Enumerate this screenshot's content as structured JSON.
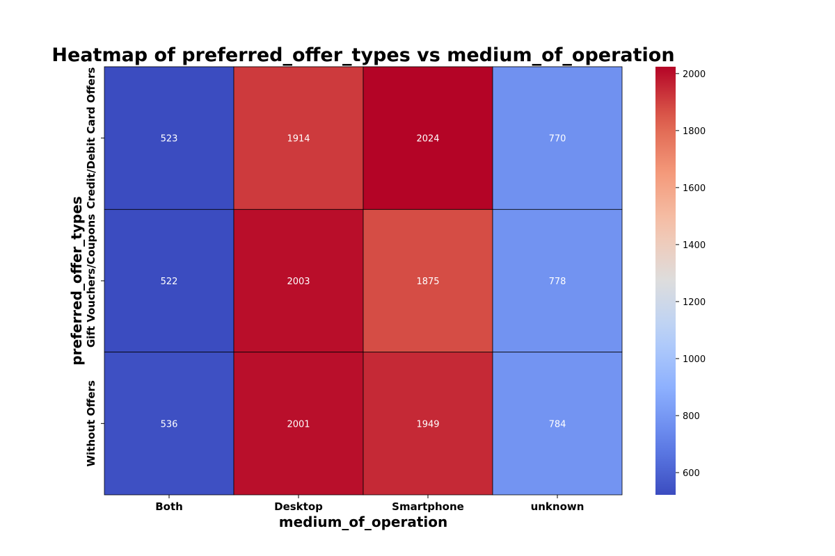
{
  "chart_data": {
    "type": "heatmap",
    "title": "Heatmap of preferred_offer_types vs medium_of_operation",
    "xlabel": "medium_of_operation",
    "ylabel": "preferred_offer_types",
    "x_categories": [
      "Both",
      "Desktop",
      "Smartphone",
      "unknown"
    ],
    "y_categories": [
      "Credit/Debit Card Offers",
      "Gift Vouchers/Coupons",
      "Without Offers"
    ],
    "values": [
      [
        523,
        1914,
        2024,
        770
      ],
      [
        522,
        2003,
        1875,
        778
      ],
      [
        536,
        2001,
        1949,
        784
      ]
    ],
    "colormap": "coolwarm",
    "vmin": 522,
    "vmax": 2024,
    "colorbar_ticks": [
      600,
      800,
      1000,
      1200,
      1400,
      1600,
      1800,
      2000
    ],
    "annotate": true,
    "cell_borders": "black"
  }
}
